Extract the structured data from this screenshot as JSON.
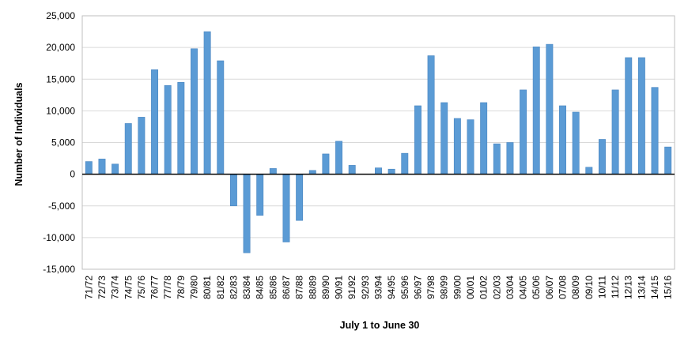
{
  "chart_data": {
    "type": "bar",
    "title": "",
    "xlabel": "July 1 to June 30",
    "ylabel": "Number of Individuals",
    "ylim": [
      -15000,
      25000
    ],
    "yticks": [
      -15000,
      -10000,
      -5000,
      0,
      5000,
      10000,
      15000,
      20000,
      25000
    ],
    "ytick_labels": [
      "-15,000",
      "-10,000",
      "-5,000",
      "0",
      "5,000",
      "10,000",
      "15,000",
      "20,000",
      "25,000"
    ],
    "grid": true,
    "legend": "none",
    "bar_color": "#5b9bd5",
    "categories": [
      "71/72",
      "72/73",
      "73/74",
      "74/75",
      "75/76",
      "76/77",
      "77/78",
      "78/79",
      "79/80",
      "80/81",
      "81/82",
      "82/83",
      "83/84",
      "84/85",
      "85/86",
      "86/87",
      "87/88",
      "88/89",
      "89/90",
      "90/91",
      "91/92",
      "92/93",
      "93/94",
      "94/95",
      "95/96",
      "96/97",
      "97/98",
      "98/99",
      "99/00",
      "00/01",
      "01/02",
      "02/03",
      "03/04",
      "04/05",
      "05/06",
      "06/07",
      "07/08",
      "08/09",
      "09/10",
      "10/11",
      "11/12",
      "12/13",
      "13/14",
      "14/15",
      "15/16"
    ],
    "values": [
      2000,
      2400,
      1600,
      8000,
      9000,
      16500,
      14000,
      14500,
      19800,
      22500,
      17900,
      -5000,
      -12400,
      -6500,
      900,
      -10700,
      -7300,
      600,
      3200,
      5200,
      1400,
      0,
      1000,
      800,
      3300,
      10800,
      18700,
      11300,
      8800,
      8600,
      11300,
      4800,
      5000,
      13300,
      20100,
      20500,
      10800,
      9800,
      1100,
      5500,
      13300,
      18400,
      18400,
      13700,
      4300
    ]
  }
}
